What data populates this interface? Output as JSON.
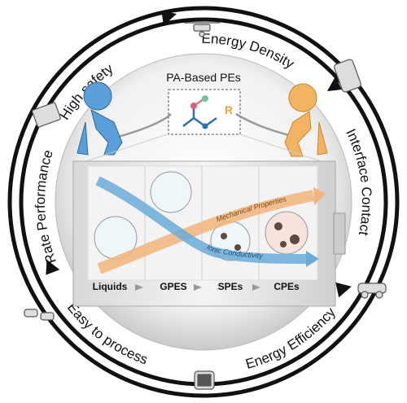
{
  "ring_labels": [
    "High safety",
    "Energy Density",
    "Interface Contact",
    "Energy Efficiency",
    "Easy to process",
    "Rate Performance"
  ],
  "center": {
    "title": "PA-Based PEs",
    "group": "R"
  },
  "curves": {
    "rising": "Mechanical Properties",
    "falling": "Ionic Conductivity"
  },
  "stages": [
    "Liquids",
    "GPES",
    "SPEs",
    "CPEs"
  ]
}
